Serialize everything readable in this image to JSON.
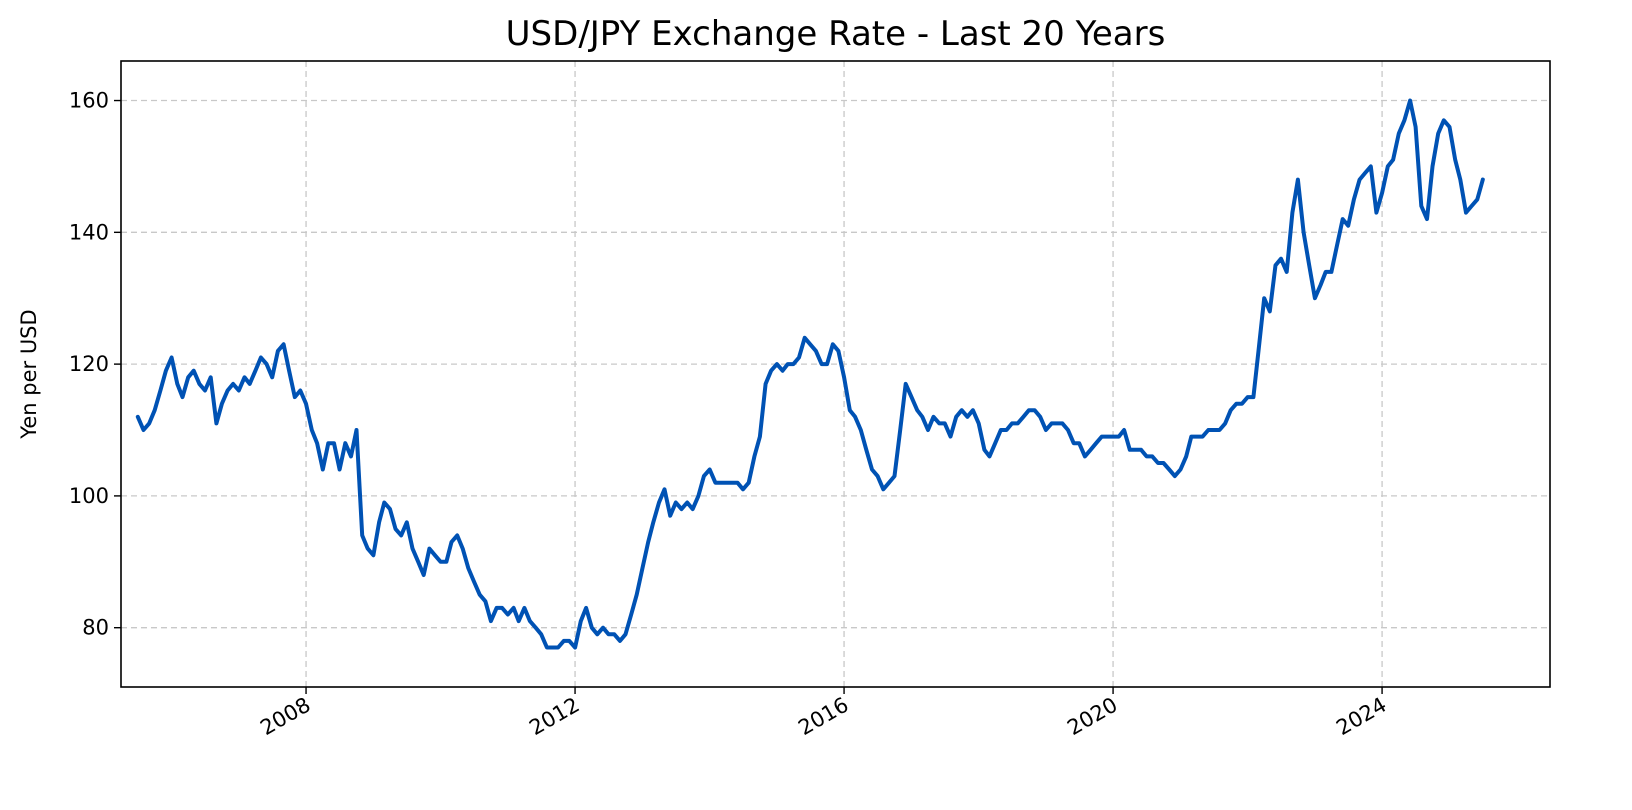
{
  "chart_data": {
    "type": "line",
    "title": "USD/JPY Exchange Rate - Last 20 Years",
    "xlabel": "",
    "ylabel": "Yen per USD",
    "xlim": [
      "2005-04-01",
      "2026-07-01"
    ],
    "ylim": [
      71,
      166
    ],
    "x_ticks": [
      "2008",
      "2012",
      "2016",
      "2020",
      "2024"
    ],
    "y_ticks": [
      80,
      100,
      120,
      140,
      160
    ],
    "grid": true,
    "grid_style": "dashed",
    "legend": "none",
    "line_color": "#0052b4",
    "series": [
      {
        "x": [
          "2005-07-01",
          "2005-08-01",
          "2005-09-01",
          "2005-10-01",
          "2005-11-01",
          "2005-12-01",
          "2006-01-01",
          "2006-02-01",
          "2006-03-01",
          "2006-04-01",
          "2006-05-01",
          "2006-06-01",
          "2006-07-01",
          "2006-08-01",
          "2006-09-01",
          "2006-10-01",
          "2006-11-01",
          "2006-12-01",
          "2007-01-01",
          "2007-02-01",
          "2007-03-01",
          "2007-04-01",
          "2007-05-01",
          "2007-06-01",
          "2007-07-01",
          "2007-08-01",
          "2007-09-01",
          "2007-10-01",
          "2007-11-01",
          "2007-12-01",
          "2008-01-01",
          "2008-02-01",
          "2008-03-01",
          "2008-04-01",
          "2008-05-01",
          "2008-06-01",
          "2008-07-01",
          "2008-08-01",
          "2008-09-01",
          "2008-10-01",
          "2008-11-01",
          "2008-12-01",
          "2009-01-01",
          "2009-02-01",
          "2009-03-01",
          "2009-04-01",
          "2009-05-01",
          "2009-06-01",
          "2009-07-01",
          "2009-08-01",
          "2009-09-01",
          "2009-10-01",
          "2009-11-01",
          "2009-12-01",
          "2010-01-01",
          "2010-02-01",
          "2010-03-01",
          "2010-04-01",
          "2010-05-01",
          "2010-06-01",
          "2010-07-01",
          "2010-08-01",
          "2010-09-01",
          "2010-10-01",
          "2010-11-01",
          "2010-12-01",
          "2011-01-01",
          "2011-02-01",
          "2011-03-01",
          "2011-04-01",
          "2011-05-01",
          "2011-06-01",
          "2011-07-01",
          "2011-08-01",
          "2011-09-01",
          "2011-10-01",
          "2011-11-01",
          "2011-12-01",
          "2012-01-01",
          "2012-02-01",
          "2012-03-01",
          "2012-04-01",
          "2012-05-01",
          "2012-06-01",
          "2012-07-01",
          "2012-08-01",
          "2012-09-01",
          "2012-10-01",
          "2012-11-01",
          "2012-12-01",
          "2013-01-01",
          "2013-02-01",
          "2013-03-01",
          "2013-04-01",
          "2013-05-01",
          "2013-06-01",
          "2013-07-01",
          "2013-08-01",
          "2013-09-01",
          "2013-10-01",
          "2013-11-01",
          "2013-12-01",
          "2014-01-01",
          "2014-02-01",
          "2014-03-01",
          "2014-04-01",
          "2014-05-01",
          "2014-06-01",
          "2014-07-01",
          "2014-08-01",
          "2014-09-01",
          "2014-10-01",
          "2014-11-01",
          "2014-12-01",
          "2015-01-01",
          "2015-02-01",
          "2015-03-01",
          "2015-04-01",
          "2015-05-01",
          "2015-06-01",
          "2015-07-01",
          "2015-08-01",
          "2015-09-01",
          "2015-10-01",
          "2015-11-01",
          "2015-12-01",
          "2016-01-01",
          "2016-02-01",
          "2016-03-01",
          "2016-04-01",
          "2016-05-01",
          "2016-06-01",
          "2016-07-01",
          "2016-08-01",
          "2016-09-01",
          "2016-10-01",
          "2016-11-01",
          "2016-12-01",
          "2017-01-01",
          "2017-02-01",
          "2017-03-01",
          "2017-04-01",
          "2017-05-01",
          "2017-06-01",
          "2017-07-01",
          "2017-08-01",
          "2017-09-01",
          "2017-10-01",
          "2017-11-01",
          "2017-12-01",
          "2018-01-01",
          "2018-02-01",
          "2018-03-01",
          "2018-04-01",
          "2018-05-01",
          "2018-06-01",
          "2018-07-01",
          "2018-08-01",
          "2018-09-01",
          "2018-10-01",
          "2018-11-01",
          "2018-12-01",
          "2019-01-01",
          "2019-02-01",
          "2019-03-01",
          "2019-04-01",
          "2019-05-01",
          "2019-06-01",
          "2019-07-01",
          "2019-08-01",
          "2019-09-01",
          "2019-10-01",
          "2019-11-01",
          "2019-12-01",
          "2020-01-01",
          "2020-02-01",
          "2020-03-01",
          "2020-04-01",
          "2020-05-01",
          "2020-06-01",
          "2020-07-01",
          "2020-08-01",
          "2020-09-01",
          "2020-10-01",
          "2020-11-01",
          "2020-12-01",
          "2021-01-01",
          "2021-02-01",
          "2021-03-01",
          "2021-04-01",
          "2021-05-01",
          "2021-06-01",
          "2021-07-01",
          "2021-08-01",
          "2021-09-01",
          "2021-10-01",
          "2021-11-01",
          "2021-12-01",
          "2022-01-01",
          "2022-02-01",
          "2022-03-01",
          "2022-04-01",
          "2022-05-01",
          "2022-06-01",
          "2022-07-01",
          "2022-08-01",
          "2022-09-01",
          "2022-10-01",
          "2022-11-01",
          "2022-12-01",
          "2023-01-01",
          "2023-02-01",
          "2023-03-01",
          "2023-04-01",
          "2023-05-01",
          "2023-06-01",
          "2023-07-01",
          "2023-08-01",
          "2023-09-01",
          "2023-10-01",
          "2023-11-01",
          "2023-12-01",
          "2024-01-01",
          "2024-02-01",
          "2024-03-01",
          "2024-04-01",
          "2024-05-01",
          "2024-06-01",
          "2024-07-01",
          "2024-08-01",
          "2024-09-01",
          "2024-10-01",
          "2024-11-01",
          "2024-12-01",
          "2025-01-01",
          "2025-02-01",
          "2025-03-01",
          "2025-04-01",
          "2025-05-01",
          "2025-06-01",
          "2025-07-01"
        ],
        "y": [
          112,
          110,
          111,
          113,
          116,
          119,
          121,
          117,
          115,
          118,
          119,
          117,
          116,
          118,
          111,
          114,
          116,
          117,
          116,
          118,
          117,
          119,
          121,
          120,
          118,
          122,
          123,
          119,
          115,
          116,
          114,
          110,
          108,
          104,
          108,
          108,
          104,
          108,
          106,
          110,
          94,
          92,
          91,
          96,
          99,
          98,
          95,
          94,
          96,
          92,
          90,
          88,
          92,
          91,
          90,
          90,
          93,
          94,
          92,
          89,
          87,
          85,
          84,
          81,
          83,
          83,
          82,
          83,
          81,
          83,
          81,
          80,
          79,
          77,
          77,
          77,
          78,
          78,
          77,
          81,
          83,
          80,
          79,
          80,
          79,
          79,
          78,
          79,
          82,
          85,
          89,
          93,
          96,
          99,
          101,
          97,
          99,
          98,
          99,
          98,
          100,
          103,
          104,
          102,
          102,
          102,
          102,
          102,
          101,
          102,
          106,
          109,
          117,
          119,
          120,
          119,
          120,
          120,
          121,
          124,
          123,
          122,
          120,
          120,
          123,
          122,
          118,
          113,
          112,
          110,
          107,
          104,
          103,
          101,
          102,
          103,
          110,
          117,
          115,
          113,
          112,
          110,
          112,
          111,
          111,
          109,
          112,
          113,
          112,
          113,
          111,
          107,
          106,
          108,
          110,
          110,
          111,
          111,
          112,
          113,
          113,
          112,
          110,
          111,
          111,
          111,
          110,
          108,
          108,
          106,
          107,
          108,
          109,
          109,
          109,
          109,
          110,
          107,
          107,
          107,
          106,
          106,
          105,
          105,
          104,
          103,
          104,
          106,
          109,
          109,
          109,
          110,
          110,
          110,
          111,
          113,
          114,
          114,
          115,
          115,
          122,
          130,
          128,
          135,
          136,
          134,
          143,
          148,
          140,
          135,
          130,
          132,
          134,
          134,
          138,
          142,
          141,
          145,
          148,
          149,
          150,
          143,
          146,
          150,
          151,
          155,
          157,
          160,
          156,
          144,
          142,
          150,
          155,
          157,
          156,
          151,
          148,
          143,
          144,
          145,
          148
        ]
      }
    ]
  }
}
